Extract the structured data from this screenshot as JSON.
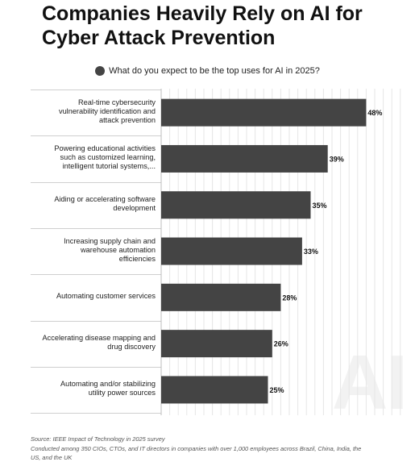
{
  "chart_data": {
    "type": "bar",
    "orientation": "horizontal",
    "title": "Companies Heavily Rely on AI for Cyber Attack Prevention",
    "legend_position": "top",
    "series": [
      {
        "name": "What do you expect to be the top uses for AI in 2025?",
        "color": "#444444"
      }
    ],
    "categories": [
      "Real-time cybersecurity vulnerability identification and attack prevention",
      "Powering educational activities such as customized learning, intelligent tutorial systems,...",
      "Aiding or accelerating software development",
      "Increasing supply chain and warehouse automation efficiencies",
      "Automating customer services",
      "Accelerating disease mapping and drug discovery",
      "Automating and/or stabilizing utility power sources"
    ],
    "values": [
      48,
      39,
      35,
      33,
      28,
      26,
      25
    ],
    "value_labels": [
      "48%",
      "39%",
      "35%",
      "33%",
      "28%",
      "26%",
      "25%"
    ],
    "unit": "%",
    "grid": true
  },
  "labels": {
    "lines": [
      [
        "Real-time cybersecurity",
        "vulnerability identification and",
        "attack prevention"
      ],
      [
        "Powering educational activities",
        "such as customized learning,",
        "intelligent tutorial systems,..."
      ],
      [
        "Aiding or accelerating software",
        "development"
      ],
      [
        "Increasing supply chain and",
        "warehouse automation",
        "efficiencies"
      ],
      [
        "Automating customer services"
      ],
      [
        "Accelerating disease mapping and",
        "drug discovery"
      ],
      [
        "Automating and/or stabilizing",
        "utility power sources"
      ]
    ]
  },
  "footer": {
    "source": "Source: IEEE Impact of Technology in 2025 survey",
    "note_line1": "Conducted among 350 CIOs, CTOs, and IT directors in companies with over 1,000 employees across Brazil, China, India, the",
    "note_line2": "US, and the UK"
  },
  "watermark": "AI"
}
